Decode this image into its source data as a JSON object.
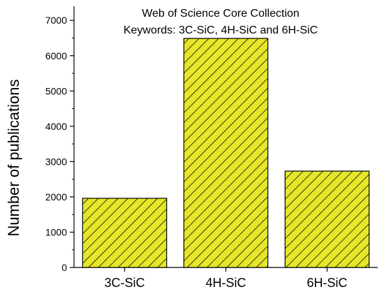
{
  "chart_data": {
    "type": "bar",
    "title_lines": [
      "Web of Science Core Collection",
      "Keywords: 3C-SiC, 4H-SiC and 6H-SiC"
    ],
    "xlabel": "",
    "ylabel": "Number of publications",
    "categories": [
      "3C-SiC",
      "4H-SiC",
      "6H-SiC"
    ],
    "values": [
      1960,
      6490,
      2730
    ],
    "ylim": [
      0,
      7400
    ],
    "yticks": [
      0,
      1000,
      2000,
      3000,
      4000,
      5000,
      6000,
      7000
    ],
    "grid": false,
    "legend": "none",
    "bar_color": "#e6e62a",
    "hatch_color": "#000000"
  }
}
